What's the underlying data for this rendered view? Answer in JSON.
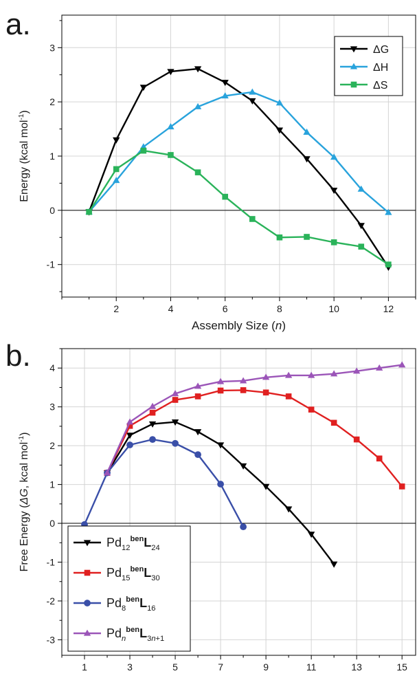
{
  "chart_data": [
    {
      "panel_label": "a.",
      "type": "line",
      "xlabel": "Assembly Size (n)",
      "ylabel": "Energy (kcal mol-1)",
      "xlim": [
        0,
        13
      ],
      "ylim": [
        -1.6,
        3.6
      ],
      "xticks": [
        2,
        4,
        6,
        8,
        10,
        12
      ],
      "yticks": [
        -1,
        0,
        1,
        2,
        3
      ],
      "grid": true,
      "zero_line": true,
      "legend_position": "top-right",
      "series": [
        {
          "name": "ΔG",
          "color": "#000000",
          "marker": "triangle-down",
          "x": [
            1,
            2,
            3,
            4,
            5,
            6,
            7,
            8,
            9,
            10,
            11,
            12
          ],
          "y": [
            -0.03,
            1.3,
            2.27,
            2.56,
            2.61,
            2.36,
            2.02,
            1.48,
            0.95,
            0.37,
            -0.28,
            -1.05
          ]
        },
        {
          "name": "ΔH",
          "color": "#29a3dc",
          "marker": "triangle-up",
          "x": [
            1,
            2,
            3,
            4,
            5,
            6,
            7,
            8,
            9,
            10,
            11,
            12
          ],
          "y": [
            -0.03,
            0.55,
            1.17,
            1.54,
            1.91,
            2.11,
            2.18,
            1.98,
            1.44,
            0.98,
            0.39,
            -0.04
          ]
        },
        {
          "name": "ΔS",
          "color": "#2ab35a",
          "marker": "square",
          "x": [
            1,
            2,
            3,
            4,
            5,
            6,
            7,
            8,
            9,
            10,
            11,
            12
          ],
          "y": [
            -0.03,
            0.76,
            1.1,
            1.02,
            0.7,
            0.25,
            -0.16,
            -0.5,
            -0.49,
            -0.59,
            -0.67,
            -1.0
          ]
        }
      ]
    },
    {
      "panel_label": "b.",
      "type": "line",
      "xlabel": "Assembly Size (n)",
      "ylabel": "Free Energy (ΔG, kcal mol-1)",
      "xlim": [
        0,
        15.6
      ],
      "ylim": [
        -3.4,
        4.5
      ],
      "xticks": [
        1,
        3,
        5,
        7,
        9,
        11,
        13,
        15
      ],
      "yticks": [
        -3,
        -2,
        -1,
        0,
        1,
        2,
        3,
        4
      ],
      "grid": true,
      "zero_line": true,
      "legend_position": "bottom-left",
      "series": [
        {
          "name": "Pd12benL24",
          "color": "#000000",
          "marker": "triangle-down",
          "x": [
            2,
            3,
            4,
            5,
            6,
            7,
            8,
            9,
            10,
            11,
            12
          ],
          "y": [
            1.3,
            2.27,
            2.56,
            2.61,
            2.36,
            2.02,
            1.48,
            0.95,
            0.37,
            -0.28,
            -1.05
          ]
        },
        {
          "name": "Pd15benL30",
          "color": "#e02020",
          "marker": "square",
          "x": [
            2,
            3,
            4,
            5,
            6,
            7,
            8,
            9,
            10,
            11,
            12,
            13,
            14,
            15
          ],
          "y": [
            1.3,
            2.51,
            2.85,
            3.18,
            3.27,
            3.42,
            3.43,
            3.37,
            3.27,
            2.93,
            2.59,
            2.16,
            1.67,
            0.95
          ]
        },
        {
          "name": "Pd8benL16",
          "color": "#3a4fa8",
          "marker": "circle",
          "x": [
            1,
            2,
            3,
            4,
            5,
            6,
            7,
            8
          ],
          "y": [
            -0.03,
            1.3,
            2.02,
            2.16,
            2.06,
            1.77,
            1.01,
            -0.09
          ]
        },
        {
          "name": "PdnbenL3n+1",
          "color": "#9b55b8",
          "marker": "triangle-up",
          "x": [
            2,
            3,
            4,
            5,
            6,
            7,
            8,
            9,
            10,
            11,
            12,
            13,
            14,
            15
          ],
          "y": [
            1.3,
            2.61,
            3.01,
            3.34,
            3.53,
            3.65,
            3.67,
            3.76,
            3.81,
            3.81,
            3.85,
            3.92,
            4.0,
            4.08
          ]
        }
      ]
    }
  ]
}
